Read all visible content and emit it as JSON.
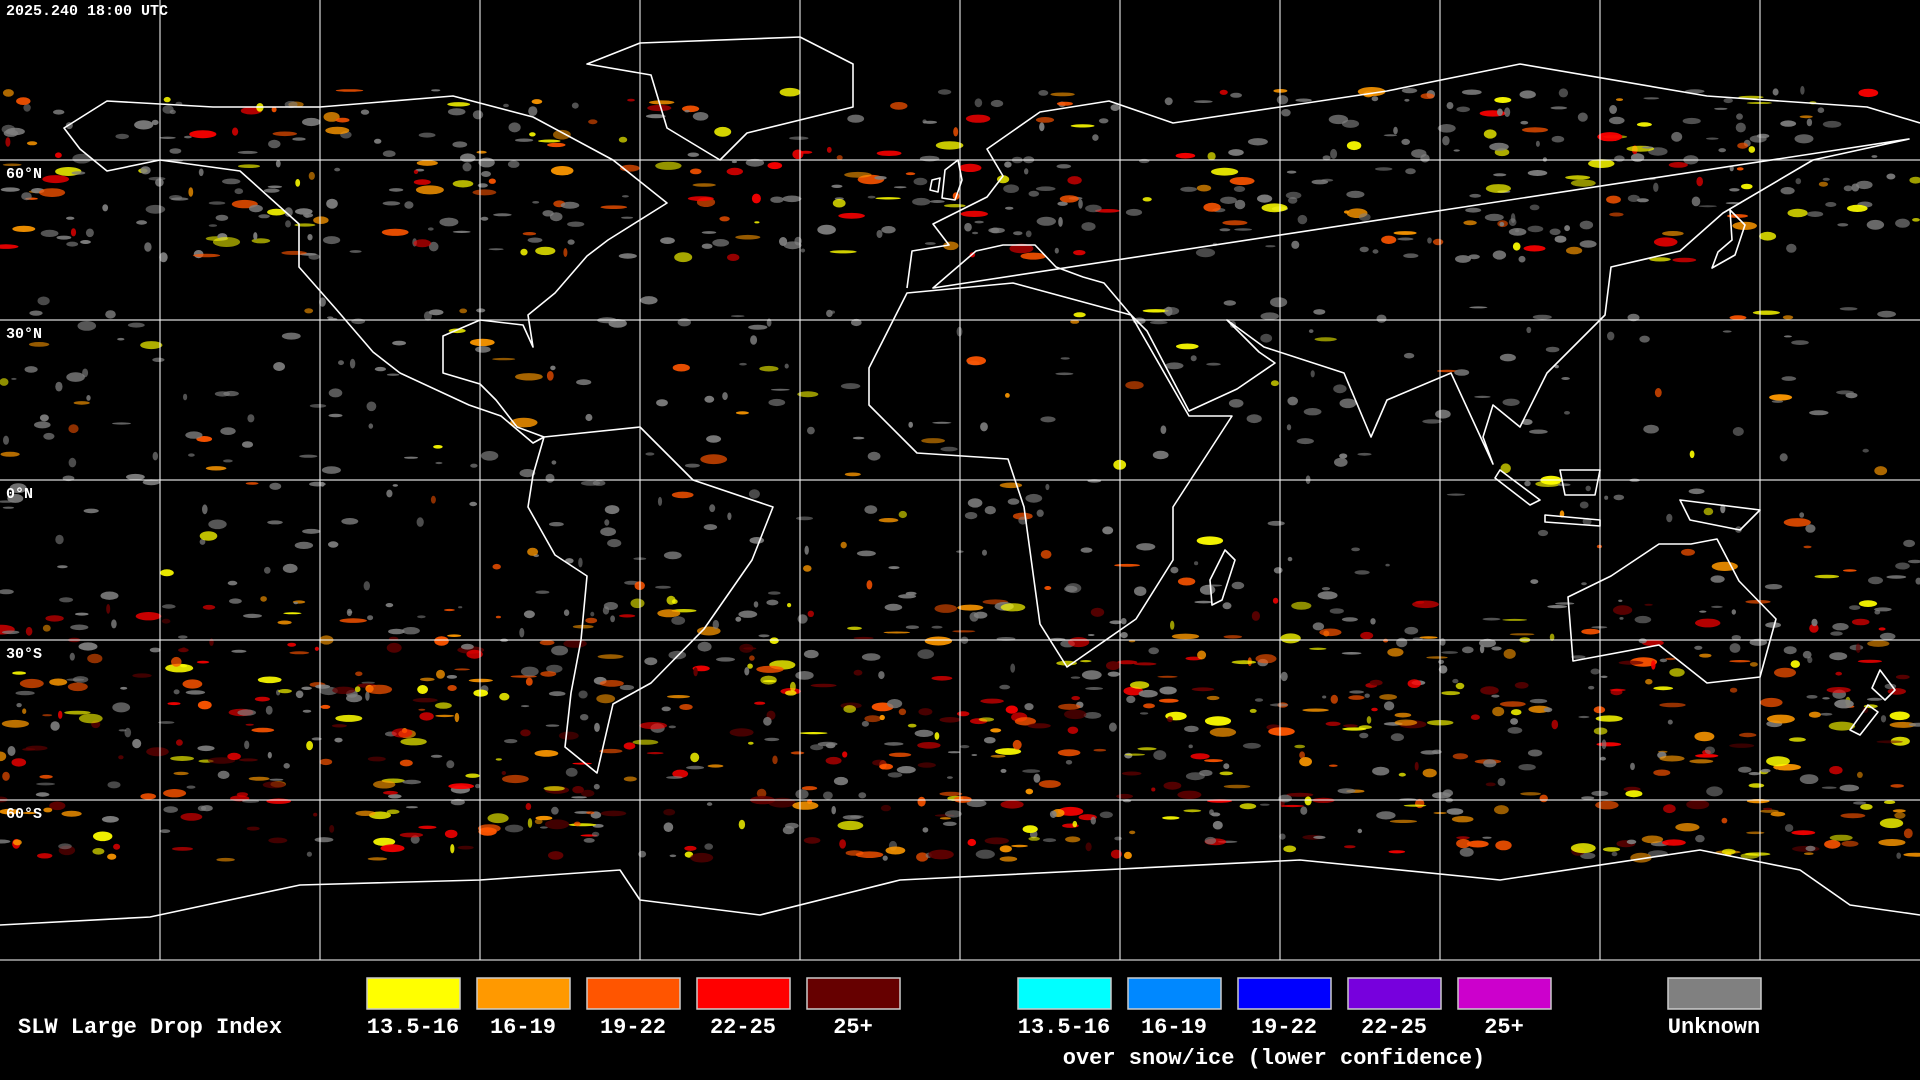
{
  "header": {
    "timestamp": "2025.240 18:00 UTC"
  },
  "map": {
    "lat_labels": [
      "60°N",
      "30°N",
      "0°N",
      "30°S",
      "60°S"
    ]
  },
  "legend": {
    "title": "SLW Large Drop Index",
    "items": [
      {
        "label": "13.5-16",
        "color": "#ffff00"
      },
      {
        "label": "16-19",
        "color": "#ff9900"
      },
      {
        "label": "19-22",
        "color": "#ff5500"
      },
      {
        "label": "22-25",
        "color": "#ff0000"
      },
      {
        "label": "25+",
        "color": "#660000"
      }
    ],
    "snow_ice_items": [
      {
        "label": "13.5-16",
        "color": "#00ffff"
      },
      {
        "label": "16-19",
        "color": "#0088ff"
      },
      {
        "label": "19-22",
        "color": "#0000ff"
      },
      {
        "label": "22-25",
        "color": "#7700dd"
      },
      {
        "label": "25+",
        "color": "#cc00cc"
      }
    ],
    "snow_ice_caption": "over snow/ice (lower confidence)",
    "unknown": {
      "label": "Unknown",
      "color": "#808080"
    }
  }
}
